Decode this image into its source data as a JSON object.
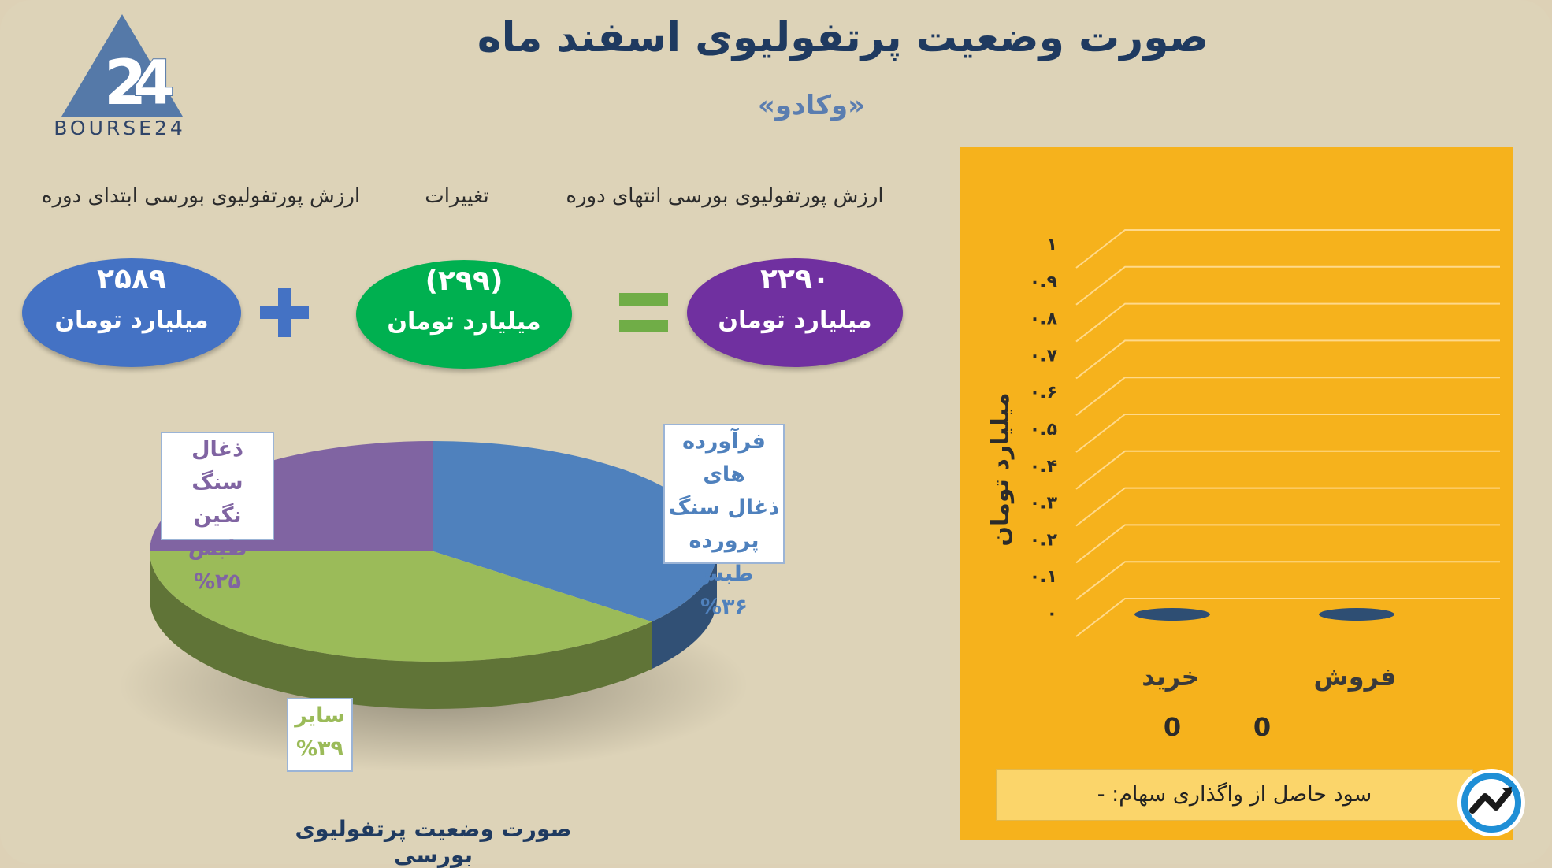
{
  "header": {
    "title": "صورت وضعیت پرتفولیوی اسفند ماه",
    "subtitle": "«وکادو»",
    "logo_text": "BOURSE24"
  },
  "summary": {
    "labels": {
      "end_value": "ارزش پورتفولیوی بورسی انتهای دوره",
      "changes": "تغییرات",
      "start_value": "ارزش پورتفولیوی بورسی ابتدای دوره"
    },
    "end": {
      "value": "۲۲۹۰",
      "unit": "میلیارد تومان",
      "color": "#7030a0"
    },
    "change": {
      "value": "(۲۹۹)",
      "unit": "میلیارد تومان",
      "color": "#00b050"
    },
    "start": {
      "value": "۲۵۸۹",
      "unit": "میلیارد تومان",
      "color": "#4472c4"
    },
    "equals_color": "#70ad47",
    "plus_color": "#4472c4"
  },
  "chart_data": [
    {
      "type": "pie",
      "title": "صورت وضعیت پرتفولیوی بورسی",
      "slices": [
        {
          "label_lines": [
            "فرآورده های",
            "ذغال سنگ",
            "پرورده طبس"
          ],
          "percent_text": "%۳۶",
          "value": 36,
          "color": "#4f81bd"
        },
        {
          "label_lines": [
            "سایر"
          ],
          "percent_text": "%۳۹",
          "value": 39,
          "color": "#9bbb59"
        },
        {
          "label_lines": [
            "ذغال سنگ",
            "نگین طبس"
          ],
          "percent_text": "%۲۵",
          "value": 25,
          "color": "#8064a2"
        }
      ]
    },
    {
      "type": "bar",
      "categories": [
        "خرید",
        "فروش"
      ],
      "values": [
        0,
        0
      ],
      "value_labels": [
        "0",
        "0"
      ],
      "ylabel": "میلیارد تومان",
      "ylim": [
        0,
        1
      ],
      "yticks": [
        "۰",
        "۰.۱",
        "۰.۲",
        "۰.۳",
        "۰.۴",
        "۰.۵",
        "۰.۶",
        "۰.۷",
        "۰.۸",
        "۰.۹",
        "۱"
      ],
      "grid": true,
      "bar_color": "#2e4e73"
    }
  ],
  "footer": {
    "profit_text": "سود حاصل از واگذاری سهام: -"
  }
}
